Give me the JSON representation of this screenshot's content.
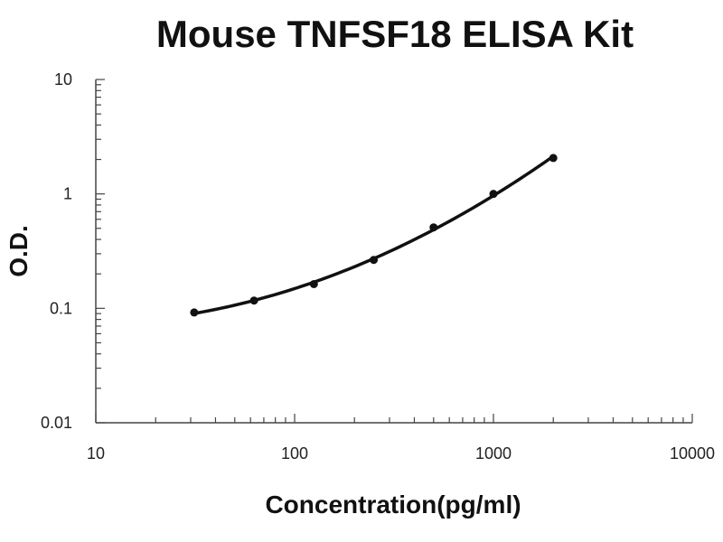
{
  "chart_data": {
    "type": "line",
    "title": "Mouse TNFSF18 ELISA Kit",
    "xlabel": "Concentration(pg/ml)",
    "ylabel": "O.D.",
    "x_scale": "log",
    "y_scale": "log",
    "xlim": [
      10,
      10000
    ],
    "ylim": [
      0.01,
      10
    ],
    "x_ticks": [
      10,
      100,
      1000,
      10000
    ],
    "x_tick_labels": [
      "10",
      "100",
      "1000",
      "10000"
    ],
    "y_ticks": [
      0.01,
      0.1,
      1,
      10
    ],
    "y_tick_labels": [
      "0.01",
      "0.1",
      "1",
      "10"
    ],
    "grid": false,
    "series": [
      {
        "x": [
          31.25,
          62.5,
          125,
          250,
          500,
          1000,
          2000
        ],
        "y": [
          0.092,
          0.117,
          0.163,
          0.265,
          0.51,
          1.0,
          2.06
        ]
      }
    ],
    "colors": {
      "line": "#111111",
      "marker": "#111111",
      "axis": "#444444"
    }
  }
}
